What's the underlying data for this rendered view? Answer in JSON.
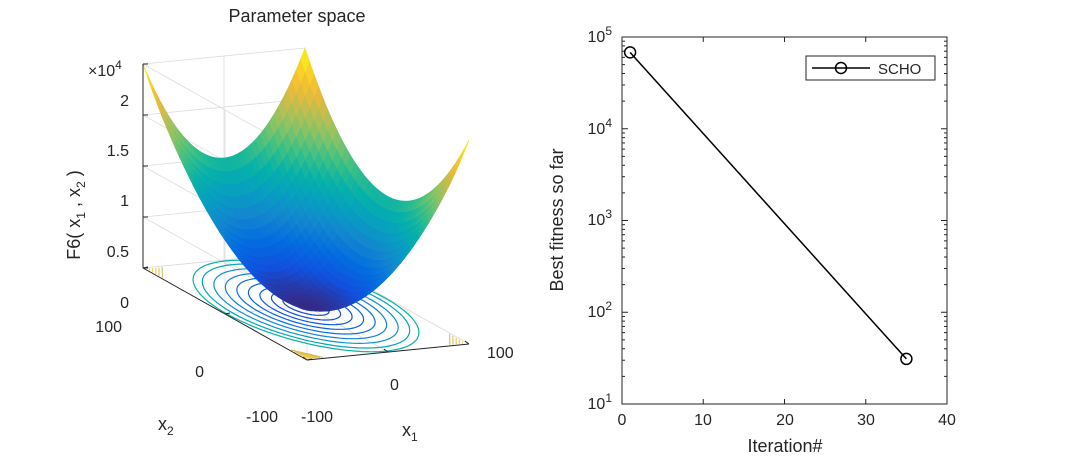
{
  "chart_data": [
    {
      "type": "surface",
      "title": "Parameter space",
      "xlabel": {
        "base": "x",
        "sub": "1"
      },
      "ylabel": {
        "base": "x",
        "sub": "2"
      },
      "zlabel": {
        "prefix": "F6( x",
        "sub1": "1",
        "mid": " , x",
        "sub2": "2",
        "suffix": " )"
      },
      "exponent": {
        "prefix": "×10",
        "power": "4"
      },
      "x_ticks": [
        "-100",
        "0",
        "100"
      ],
      "y_ticks": [
        "-100",
        "0",
        "100"
      ],
      "z_ticks": [
        "0",
        "0.5",
        "1",
        "1.5",
        "2"
      ],
      "xlim": [
        -100,
        100
      ],
      "ylim": [
        -100,
        100
      ],
      "zlim": [
        0,
        20000
      ],
      "function": "x1^2 + x2^2",
      "contours_on_floor": true,
      "colormap": "parula",
      "grid": true
    },
    {
      "type": "line",
      "xlabel": "Iteration#",
      "ylabel": "Best fitness so far",
      "x_ticks": [
        "0",
        "10",
        "20",
        "30",
        "40"
      ],
      "y_ticks": [
        {
          "base": "10",
          "power": "1"
        },
        {
          "base": "10",
          "power": "2"
        },
        {
          "base": "10",
          "power": "3"
        },
        {
          "base": "10",
          "power": "4"
        },
        {
          "base": "10",
          "power": "5"
        }
      ],
      "xlim": [
        0,
        40
      ],
      "ylim": [
        10,
        100000
      ],
      "yscale": "log",
      "legend_position": "top-right",
      "series": [
        {
          "name": "SCHO",
          "x": [
            1,
            35
          ],
          "y": [
            68000,
            31
          ],
          "color": "#000000",
          "marker": "o"
        }
      ]
    }
  ]
}
